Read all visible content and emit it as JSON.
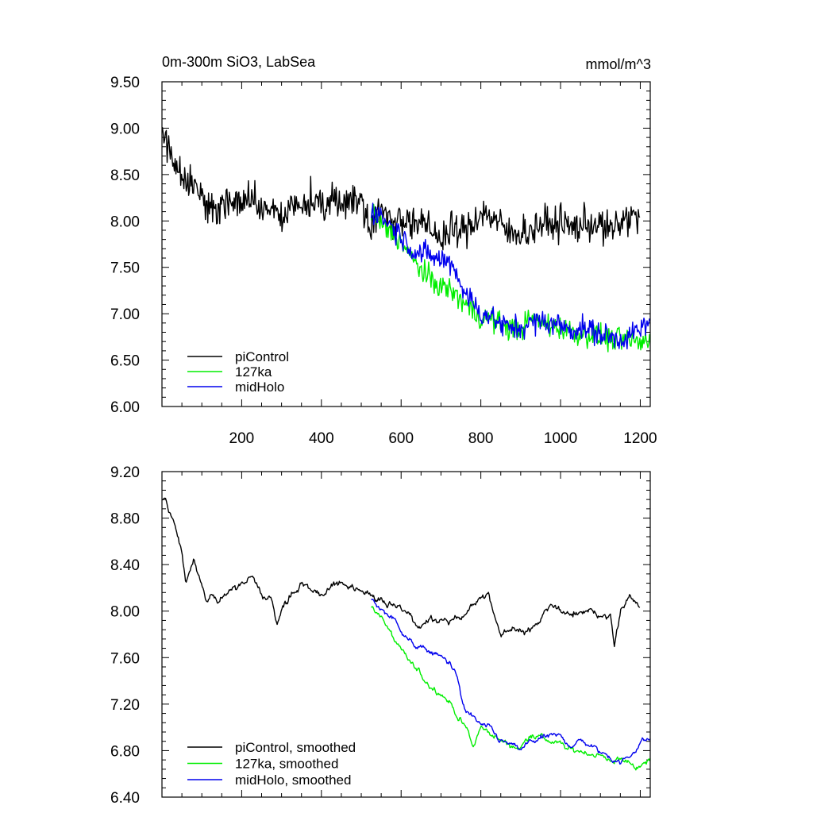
{
  "chart_data": [
    {
      "type": "line",
      "title": "0m-300m SiO3, LabSea",
      "units": "mmol/m^3",
      "xlabel": "",
      "ylabel": "",
      "xlim": [
        0,
        1225
      ],
      "ylim": [
        6.0,
        9.5
      ],
      "xticks": [
        200,
        400,
        600,
        800,
        1000,
        1200
      ],
      "xtick_labels": [
        "200",
        "400",
        "600",
        "800",
        "1000",
        "1200"
      ],
      "yticks": [
        6.0,
        6.5,
        7.0,
        7.5,
        8.0,
        8.5,
        9.0,
        9.5
      ],
      "ytick_labels": [
        "6.00",
        "6.50",
        "7.00",
        "7.50",
        "8.00",
        "8.50",
        "9.00",
        "9.50"
      ],
      "legend_position": "bottom-left",
      "series": [
        {
          "name": "piControl",
          "color": "#000000",
          "x": [
            1,
            25,
            50,
            75,
            100,
            125,
            150,
            175,
            200,
            225,
            250,
            275,
            300,
            325,
            350,
            375,
            400,
            425,
            450,
            475,
            500,
            525,
            550,
            575,
            600,
            625,
            650,
            675,
            700,
            725,
            750,
            775,
            800,
            825,
            850,
            875,
            900,
            925,
            950,
            975,
            1000,
            1025,
            1050,
            1075,
            1100,
            1125,
            1150,
            1175,
            1200
          ],
          "values": [
            8.95,
            8.7,
            8.5,
            8.42,
            8.25,
            8.1,
            8.2,
            8.18,
            8.2,
            8.25,
            8.12,
            8.15,
            7.95,
            8.2,
            8.15,
            8.25,
            8.1,
            8.22,
            8.2,
            8.25,
            8.2,
            8.0,
            8.1,
            8.0,
            8.05,
            7.98,
            7.95,
            7.9,
            7.82,
            7.9,
            7.88,
            7.95,
            8.1,
            8.05,
            7.95,
            7.85,
            7.9,
            7.88,
            7.98,
            7.95,
            8.0,
            7.92,
            7.95,
            7.98,
            7.95,
            7.88,
            7.98,
            8.05,
            8.02
          ],
          "noise": 0.16
        },
        {
          "name": "127ka",
          "color": "#00ee00",
          "x": [
            525,
            550,
            575,
            600,
            625,
            650,
            675,
            700,
            725,
            750,
            775,
            800,
            825,
            850,
            875,
            900,
            925,
            950,
            975,
            1000,
            1025,
            1050,
            1075,
            1100,
            1125,
            1150,
            1175,
            1200,
            1225
          ],
          "values": [
            8.1,
            7.95,
            7.88,
            7.78,
            7.6,
            7.48,
            7.35,
            7.3,
            7.25,
            7.15,
            7.05,
            6.95,
            6.95,
            6.88,
            6.85,
            6.82,
            6.95,
            6.9,
            6.88,
            6.85,
            6.82,
            6.78,
            6.78,
            6.75,
            6.72,
            6.72,
            6.72,
            6.68,
            6.72
          ],
          "noise": 0.11
        },
        {
          "name": "midHolo",
          "color": "#0000ee",
          "x": [
            525,
            550,
            575,
            600,
            625,
            650,
            675,
            700,
            725,
            740,
            750,
            775,
            800,
            825,
            850,
            875,
            900,
            925,
            950,
            975,
            1000,
            1025,
            1050,
            1075,
            1100,
            1125,
            1150,
            1175,
            1200,
            1225
          ],
          "values": [
            8.12,
            8.05,
            7.95,
            7.85,
            7.7,
            7.65,
            7.62,
            7.58,
            7.55,
            7.45,
            7.3,
            7.15,
            7.0,
            6.98,
            6.88,
            6.85,
            6.85,
            6.9,
            6.92,
            6.9,
            6.88,
            6.82,
            6.85,
            6.82,
            6.78,
            6.75,
            6.72,
            6.78,
            6.82,
            6.9
          ],
          "noise": 0.11
        }
      ]
    },
    {
      "type": "line",
      "title": "",
      "xlabel": "",
      "ylabel": "",
      "xlim": [
        0,
        1225
      ],
      "ylim": [
        6.4,
        9.2
      ],
      "xticks": [
        200,
        400,
        600,
        800,
        1000,
        1200
      ],
      "xtick_labels": [],
      "yticks": [
        6.4,
        6.8,
        7.2,
        7.6,
        8.0,
        8.4,
        8.8,
        9.2
      ],
      "ytick_labels": [
        "6.40",
        "6.80",
        "7.20",
        "7.60",
        "8.00",
        "8.40",
        "8.80",
        "9.20"
      ],
      "legend_position": "bottom-left",
      "series": [
        {
          "name": "piControl, smoothed",
          "color": "#000000",
          "x": [
            1,
            10,
            20,
            30,
            40,
            50,
            60,
            70,
            80,
            90,
            100,
            110,
            125,
            140,
            150,
            175,
            200,
            225,
            250,
            275,
            290,
            300,
            325,
            350,
            375,
            400,
            425,
            450,
            475,
            500,
            525,
            550,
            575,
            600,
            625,
            640,
            650,
            675,
            700,
            725,
            750,
            775,
            800,
            820,
            830,
            850,
            875,
            900,
            925,
            950,
            975,
            1000,
            1025,
            1050,
            1075,
            1100,
            1125,
            1135,
            1150,
            1175,
            1200
          ],
          "values": [
            8.97,
            8.95,
            8.85,
            8.72,
            8.6,
            8.48,
            8.25,
            8.38,
            8.45,
            8.32,
            8.22,
            8.1,
            8.12,
            8.05,
            8.12,
            8.2,
            8.22,
            8.3,
            8.15,
            8.1,
            7.92,
            8.02,
            8.15,
            8.25,
            8.18,
            8.12,
            8.22,
            8.25,
            8.25,
            8.12,
            8.15,
            8.1,
            8.02,
            8.05,
            7.92,
            7.82,
            7.85,
            7.95,
            7.92,
            7.9,
            7.95,
            8.0,
            8.12,
            8.18,
            8.0,
            7.8,
            7.85,
            7.82,
            7.85,
            7.92,
            8.05,
            8.0,
            7.95,
            8.0,
            8.02,
            7.95,
            7.98,
            7.72,
            8.02,
            8.12,
            8.02
          ],
          "noise": 0.035
        },
        {
          "name": "127ka, smoothed",
          "color": "#00ee00",
          "x": [
            525,
            550,
            575,
            600,
            625,
            650,
            675,
            700,
            725,
            750,
            770,
            780,
            800,
            825,
            850,
            875,
            900,
            925,
            950,
            975,
            1000,
            1025,
            1050,
            1075,
            1100,
            1125,
            1150,
            1175,
            1200,
            1225
          ],
          "values": [
            8.05,
            7.95,
            7.8,
            7.65,
            7.55,
            7.45,
            7.35,
            7.3,
            7.2,
            7.05,
            6.95,
            6.82,
            7.0,
            6.95,
            6.88,
            6.85,
            6.82,
            6.95,
            6.92,
            6.88,
            6.85,
            6.8,
            6.8,
            6.78,
            6.75,
            6.72,
            6.72,
            6.7,
            6.65,
            6.72
          ],
          "noise": 0.03
        },
        {
          "name": "midHolo, smoothed",
          "color": "#0000ee",
          "x": [
            525,
            550,
            575,
            600,
            625,
            650,
            675,
            700,
            725,
            740,
            750,
            760,
            775,
            800,
            825,
            850,
            875,
            900,
            925,
            950,
            975,
            1000,
            1025,
            1050,
            1075,
            1100,
            1125,
            1150,
            1175,
            1200,
            1225
          ],
          "values": [
            8.1,
            8.02,
            7.95,
            7.85,
            7.72,
            7.68,
            7.65,
            7.6,
            7.55,
            7.45,
            7.25,
            7.15,
            7.1,
            7.02,
            6.98,
            6.88,
            6.85,
            6.8,
            6.88,
            6.9,
            6.92,
            6.92,
            6.85,
            6.88,
            6.85,
            6.78,
            6.75,
            6.7,
            6.75,
            6.88,
            6.9
          ],
          "noise": 0.03
        }
      ]
    }
  ]
}
